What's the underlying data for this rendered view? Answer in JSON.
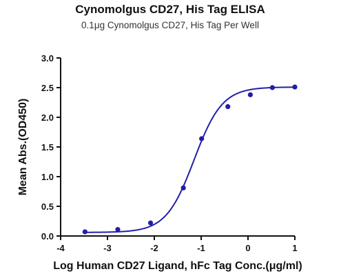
{
  "chart_data": {
    "type": "scatter",
    "title": "Cynomolgus CD27, His Tag ELISA",
    "subtitle": "0.1μg Cynomolgus CD27, His Tag Per Well",
    "xlabel": "Log Human CD27 Ligand, hFc Tag Conc.(μg/ml)",
    "ylabel": "Mean Abs.(OD450)",
    "xlim": [
      -4,
      1
    ],
    "ylim": [
      0,
      3.0
    ],
    "xticks": [
      -4,
      -3,
      -2,
      -1,
      0,
      1
    ],
    "yticks": [
      0.0,
      0.5,
      1.0,
      1.5,
      2.0,
      2.5,
      3.0
    ],
    "xtick_labels": [
      "-4",
      "-3",
      "-2",
      "-1",
      "0",
      "1"
    ],
    "ytick_labels": [
      "0.0",
      "0.5",
      "1.0",
      "1.5",
      "2.0",
      "2.5",
      "3.0"
    ],
    "grid": false,
    "series": [
      {
        "x": [
          -3.48,
          -2.78,
          -2.08,
          -1.38,
          -0.99,
          -0.43,
          0.05,
          0.52,
          1.0
        ],
        "y": [
          0.07,
          0.11,
          0.22,
          0.81,
          1.64,
          2.18,
          2.38,
          2.5,
          2.51
        ],
        "color": "#1f1fa8",
        "fit": "sigmoidal 4PL curve"
      }
    ]
  }
}
